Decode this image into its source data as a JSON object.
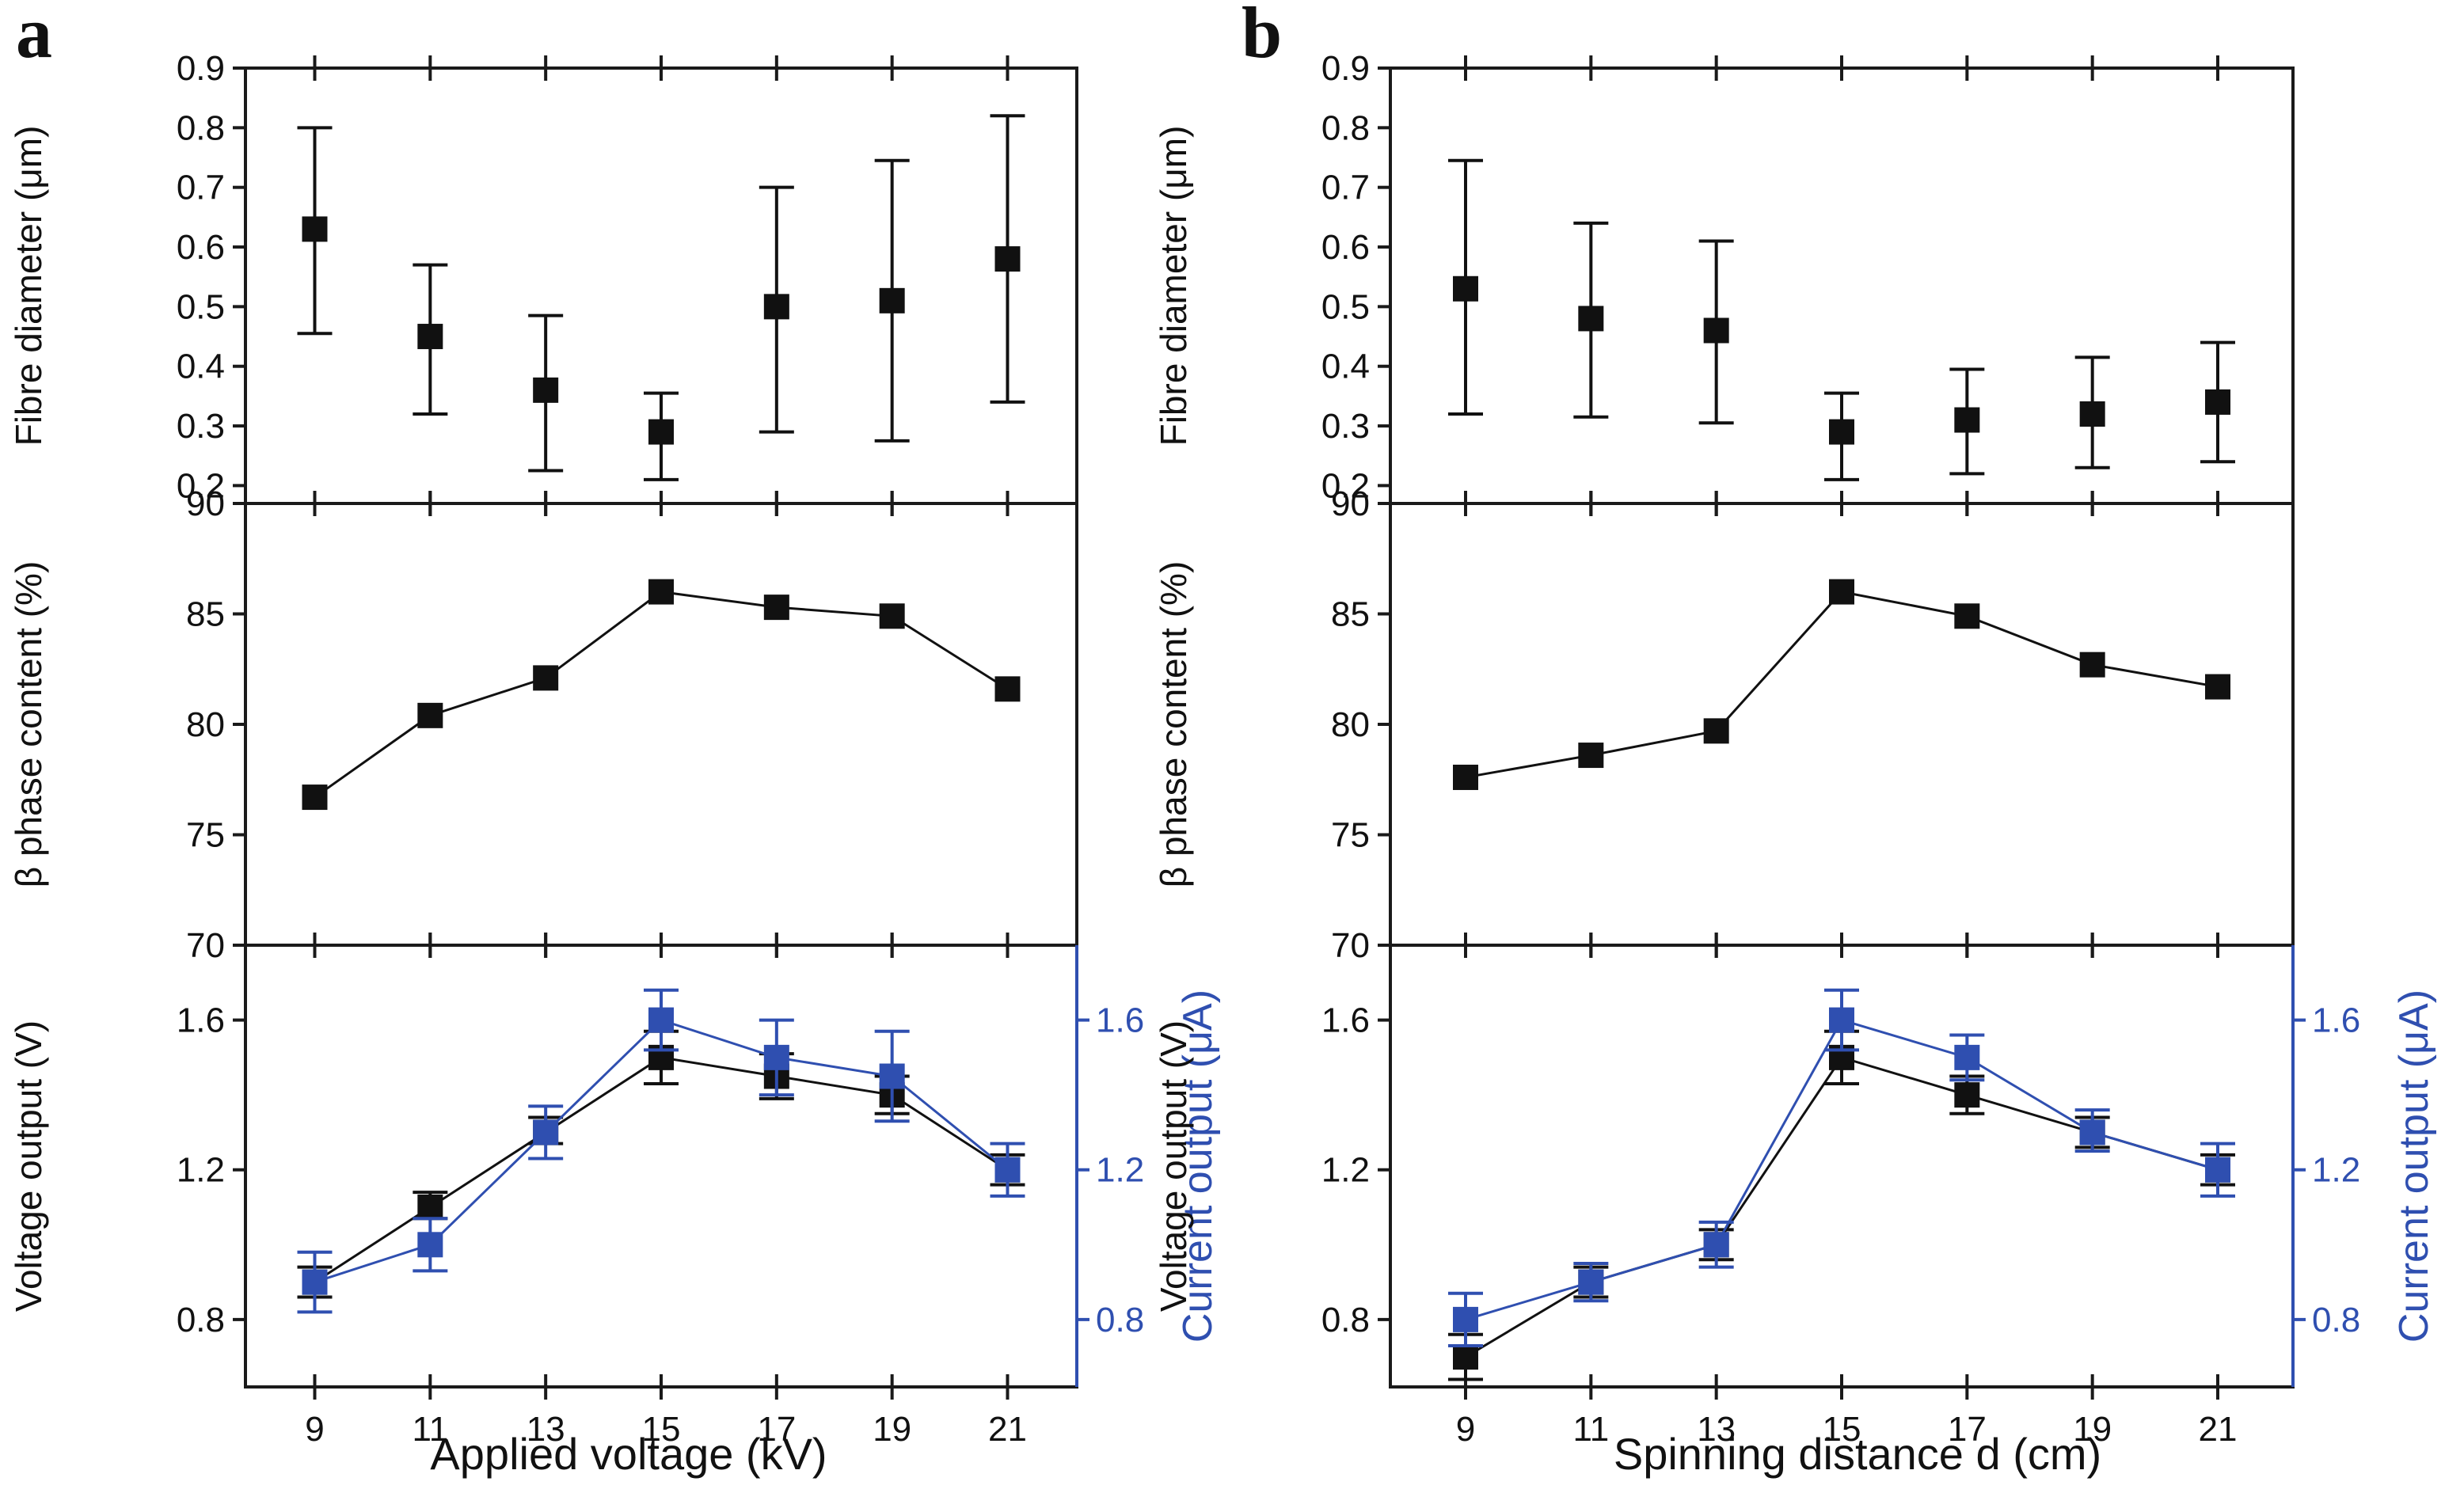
{
  "figure": {
    "panels": [
      {
        "letter": "a",
        "xlabel": "Applied voltage (kV)"
      },
      {
        "letter": "b",
        "xlabel": "Spinning distance d (cm)"
      }
    ],
    "colors": {
      "black": "#111111",
      "blue": "#2f4fb0",
      "axis": "#1a1a1a"
    }
  },
  "chart_data": [
    {
      "type": "scatter",
      "panel": "a",
      "subplot": "fibre-diameter",
      "xlabel": "Applied voltage (kV)",
      "ylabel": "Fibre diameter (μm)",
      "x": [
        9,
        11,
        13,
        15,
        17,
        19,
        21
      ],
      "xlim": [
        7.8,
        22.2
      ],
      "ylim": [
        0.17,
        0.9
      ],
      "yticks": [
        0.2,
        0.3,
        0.4,
        0.5,
        0.6,
        0.7,
        0.8,
        0.9
      ],
      "yticklabels": [
        "0.2",
        "0.3",
        "0.4",
        "0.5",
        "0.6",
        "0.7",
        "0.8",
        "0.9"
      ],
      "series": [
        {
          "name": "Fibre diameter",
          "color": "#111111",
          "line": false,
          "values": [
            0.63,
            0.45,
            0.36,
            0.29,
            0.5,
            0.51,
            0.58
          ],
          "err_low": [
            0.455,
            0.32,
            0.225,
            0.21,
            0.29,
            0.275,
            0.34
          ],
          "err_high": [
            0.8,
            0.57,
            0.485,
            0.355,
            0.7,
            0.745,
            0.82
          ]
        }
      ]
    },
    {
      "type": "line",
      "panel": "a",
      "subplot": "beta-phase",
      "xlabel": "Applied voltage (kV)",
      "ylabel": "β phase content (%)",
      "x": [
        9,
        11,
        13,
        15,
        17,
        19,
        21
      ],
      "xlim": [
        7.8,
        22.2
      ],
      "ylim": [
        70,
        90
      ],
      "yticks": [
        70,
        75,
        80,
        85,
        90
      ],
      "yticklabels": [
        "70",
        "75",
        "80",
        "85",
        "90"
      ],
      "series": [
        {
          "name": "β phase content",
          "color": "#111111",
          "line": true,
          "values": [
            76.7,
            80.4,
            82.1,
            86.0,
            85.3,
            84.9,
            81.6
          ]
        }
      ]
    },
    {
      "type": "line",
      "panel": "a",
      "subplot": "output",
      "xlabel": "Applied voltage (kV)",
      "ylabel": "Voltage output (V)",
      "ylabel_right": "Current output (μA)",
      "x": [
        9,
        11,
        13,
        15,
        17,
        19,
        21
      ],
      "xticklabels": [
        "9",
        "11",
        "13",
        "15",
        "17",
        "19",
        "21"
      ],
      "xlim": [
        7.8,
        22.2
      ],
      "ylim": [
        0.62,
        1.8
      ],
      "yticks": [
        0.8,
        1.2,
        1.6
      ],
      "yticklabels": [
        "0.8",
        "1.2",
        "1.6"
      ],
      "yticklabels_right": [
        "0.8",
        "1.2",
        "1.6"
      ],
      "series": [
        {
          "name": "Voltage output",
          "color": "#111111",
          "line": true,
          "values": [
            0.9,
            1.1,
            1.3,
            1.5,
            1.45,
            1.4,
            1.2
          ],
          "err_low": [
            0.86,
            1.07,
            1.27,
            1.43,
            1.39,
            1.35,
            1.16
          ],
          "err_high": [
            0.94,
            1.14,
            1.34,
            1.57,
            1.51,
            1.45,
            1.24
          ]
        },
        {
          "name": "Current output",
          "color": "#2f4fb0",
          "line": true,
          "values": [
            0.9,
            1.0,
            1.3,
            1.6,
            1.5,
            1.45,
            1.2
          ],
          "err_low": [
            0.82,
            0.93,
            1.23,
            1.52,
            1.4,
            1.33,
            1.13
          ],
          "err_high": [
            0.98,
            1.07,
            1.37,
            1.68,
            1.6,
            1.57,
            1.27
          ]
        }
      ]
    },
    {
      "type": "scatter",
      "panel": "b",
      "subplot": "fibre-diameter",
      "xlabel": "Spinning distance d (cm)",
      "ylabel": "Fibre diameter (μm)",
      "x": [
        9,
        11,
        13,
        15,
        17,
        19,
        21
      ],
      "xlim": [
        7.8,
        22.2
      ],
      "ylim": [
        0.17,
        0.9
      ],
      "yticks": [
        0.2,
        0.3,
        0.4,
        0.5,
        0.6,
        0.7,
        0.8,
        0.9
      ],
      "yticklabels": [
        "0.2",
        "0.3",
        "0.4",
        "0.5",
        "0.6",
        "0.7",
        "0.8",
        "0.9"
      ],
      "series": [
        {
          "name": "Fibre diameter",
          "color": "#111111",
          "line": false,
          "values": [
            0.53,
            0.48,
            0.46,
            0.29,
            0.31,
            0.32,
            0.34
          ],
          "err_low": [
            0.32,
            0.315,
            0.305,
            0.21,
            0.22,
            0.23,
            0.24
          ],
          "err_high": [
            0.745,
            0.64,
            0.61,
            0.355,
            0.395,
            0.415,
            0.44
          ]
        }
      ]
    },
    {
      "type": "line",
      "panel": "b",
      "subplot": "beta-phase",
      "xlabel": "Spinning distance d (cm)",
      "ylabel": "β phase content (%)",
      "x": [
        9,
        11,
        13,
        15,
        17,
        19,
        21
      ],
      "xlim": [
        7.8,
        22.2
      ],
      "ylim": [
        70,
        90
      ],
      "yticks": [
        70,
        75,
        80,
        85,
        90
      ],
      "yticklabels": [
        "70",
        "75",
        "80",
        "85",
        "90"
      ],
      "series": [
        {
          "name": "β phase content",
          "color": "#111111",
          "line": true,
          "values": [
            77.6,
            78.6,
            79.7,
            86.0,
            84.9,
            82.7,
            81.7
          ]
        }
      ]
    },
    {
      "type": "line",
      "panel": "b",
      "subplot": "output",
      "xlabel": "Spinning distance d (cm)",
      "ylabel": "Voltage output (V)",
      "ylabel_right": "Current output (μA)",
      "x": [
        9,
        11,
        13,
        15,
        17,
        19,
        21
      ],
      "xticklabels": [
        "9",
        "11",
        "13",
        "15",
        "17",
        "19",
        "21"
      ],
      "xlim": [
        7.8,
        22.2
      ],
      "ylim": [
        0.62,
        1.8
      ],
      "yticks": [
        0.8,
        1.2,
        1.6
      ],
      "yticklabels": [
        "0.8",
        "1.2",
        "1.6"
      ],
      "yticklabels_right": [
        "0.8",
        "1.2",
        "1.6"
      ],
      "series": [
        {
          "name": "Voltage output",
          "color": "#111111",
          "line": true,
          "values": [
            0.7,
            0.9,
            1.0,
            1.5,
            1.4,
            1.3,
            1.2
          ],
          "err_low": [
            0.64,
            0.86,
            0.96,
            1.43,
            1.35,
            1.26,
            1.16
          ],
          "err_high": [
            0.76,
            0.94,
            1.04,
            1.57,
            1.45,
            1.34,
            1.24
          ]
        },
        {
          "name": "Current output",
          "color": "#2f4fb0",
          "line": true,
          "values": [
            0.8,
            0.9,
            1.0,
            1.6,
            1.5,
            1.3,
            1.2
          ],
          "err_low": [
            0.73,
            0.85,
            0.94,
            1.52,
            1.44,
            1.25,
            1.13
          ],
          "err_high": [
            0.87,
            0.95,
            1.06,
            1.68,
            1.56,
            1.36,
            1.27
          ]
        }
      ]
    }
  ]
}
